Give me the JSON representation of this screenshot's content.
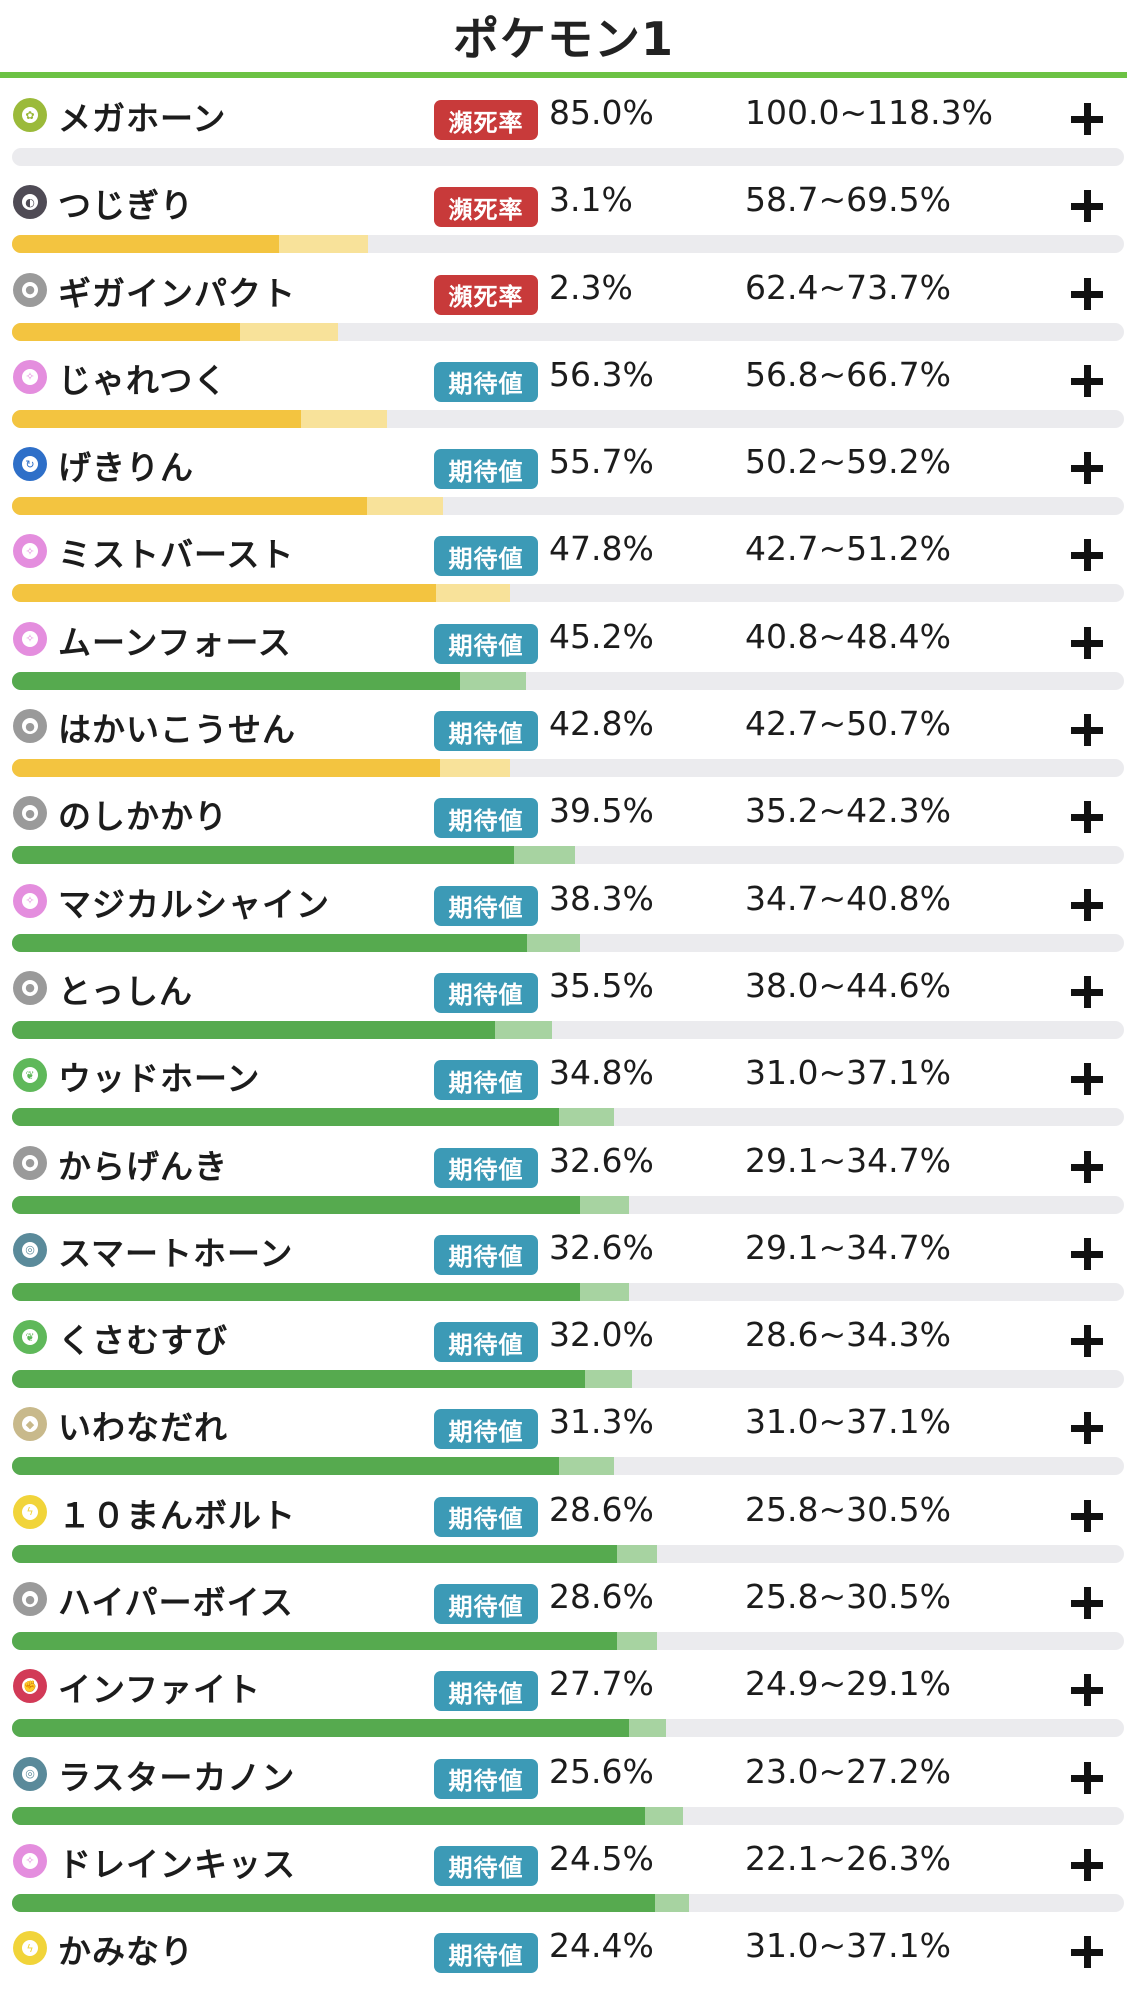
{
  "title": "ポケモン1",
  "colors": {
    "accent": "#6cc244",
    "badge_hinshi": "#c83a3a",
    "badge_kitai": "#3c9ab6",
    "bar_yellow": "#f3c440",
    "bar_yellow_light": "#f8e29a",
    "bar_green": "#56aa4f",
    "bar_green_light": "#a7d3a1",
    "bar_track": "#ebebee"
  },
  "moves": [
    {
      "name": "メガホーン",
      "type": "bug",
      "type_color": "#9bba3a",
      "badge": "瀕死率",
      "badge_color": "#c83a3a",
      "pct": "85.0%",
      "range": "100.0~118.3%",
      "bar_main": 0.0,
      "bar_light": 0.0,
      "bar_color": "yellow"
    },
    {
      "name": "つじぎり",
      "type": "dark",
      "type_color": "#4f4b55",
      "badge": "瀕死率",
      "badge_color": "#c83a3a",
      "pct": "3.1%",
      "range": "58.7~69.5%",
      "bar_main": 0.24,
      "bar_light": 0.32,
      "bar_color": "yellow"
    },
    {
      "name": "ギガインパクト",
      "type": "normal",
      "type_color": "#9a9a9a",
      "badge": "瀕死率",
      "badge_color": "#c83a3a",
      "pct": "2.3%",
      "range": "62.4~73.7%",
      "bar_main": 0.205,
      "bar_light": 0.293,
      "bar_color": "yellow"
    },
    {
      "name": "じゃれつく",
      "type": "fairy",
      "type_color": "#e48ede",
      "badge": "期待値",
      "badge_color": "#3c9ab6",
      "pct": "56.3%",
      "range": "56.8~66.7%",
      "bar_main": 0.26,
      "bar_light": 0.337,
      "bar_color": "yellow"
    },
    {
      "name": "げきりん",
      "type": "dragon",
      "type_color": "#2e6fc8",
      "badge": "期待値",
      "badge_color": "#3c9ab6",
      "pct": "55.7%",
      "range": "50.2~59.2%",
      "bar_main": 0.319,
      "bar_light": 0.388,
      "bar_color": "yellow"
    },
    {
      "name": "ミストバースト",
      "type": "fairy",
      "type_color": "#e48ede",
      "badge": "期待値",
      "badge_color": "#3c9ab6",
      "pct": "47.8%",
      "range": "42.7~51.2%",
      "bar_main": 0.381,
      "bar_light": 0.448,
      "bar_color": "yellow"
    },
    {
      "name": "ムーンフォース",
      "type": "fairy",
      "type_color": "#e48ede",
      "badge": "期待値",
      "badge_color": "#3c9ab6",
      "pct": "45.2%",
      "range": "40.8~48.4%",
      "bar_main": 0.403,
      "bar_light": 0.462,
      "bar_color": "green"
    },
    {
      "name": "はかいこうせん",
      "type": "normal",
      "type_color": "#9a9a9a",
      "badge": "期待値",
      "badge_color": "#3c9ab6",
      "pct": "42.8%",
      "range": "42.7~50.7%",
      "bar_main": 0.385,
      "bar_light": 0.448,
      "bar_color": "yellow"
    },
    {
      "name": "のしかかり",
      "type": "normal",
      "type_color": "#9a9a9a",
      "badge": "期待値",
      "badge_color": "#3c9ab6",
      "pct": "39.5%",
      "range": "35.2~42.3%",
      "bar_main": 0.451,
      "bar_light": 0.506,
      "bar_color": "green"
    },
    {
      "name": "マジカルシャイン",
      "type": "fairy",
      "type_color": "#e48ede",
      "badge": "期待値",
      "badge_color": "#3c9ab6",
      "pct": "38.3%",
      "range": "34.7~40.8%",
      "bar_main": 0.463,
      "bar_light": 0.511,
      "bar_color": "green"
    },
    {
      "name": "とっしん",
      "type": "normal",
      "type_color": "#9a9a9a",
      "badge": "期待値",
      "badge_color": "#3c9ab6",
      "pct": "35.5%",
      "range": "38.0~44.6%",
      "bar_main": 0.434,
      "bar_light": 0.486,
      "bar_color": "green"
    },
    {
      "name": "ウッドホーン",
      "type": "grass",
      "type_color": "#5fb85a",
      "badge": "期待値",
      "badge_color": "#3c9ab6",
      "pct": "34.8%",
      "range": "31.0~37.1%",
      "bar_main": 0.492,
      "bar_light": 0.541,
      "bar_color": "green"
    },
    {
      "name": "からげんき",
      "type": "normal",
      "type_color": "#9a9a9a",
      "badge": "期待値",
      "badge_color": "#3c9ab6",
      "pct": "32.6%",
      "range": "29.1~34.7%",
      "bar_main": 0.511,
      "bar_light": 0.555,
      "bar_color": "green"
    },
    {
      "name": "スマートホーン",
      "type": "steel",
      "type_color": "#5a8a9a",
      "badge": "期待値",
      "badge_color": "#3c9ab6",
      "pct": "32.6%",
      "range": "29.1~34.7%",
      "bar_main": 0.511,
      "bar_light": 0.555,
      "bar_color": "green"
    },
    {
      "name": "くさむすび",
      "type": "grass",
      "type_color": "#5fb85a",
      "badge": "期待値",
      "badge_color": "#3c9ab6",
      "pct": "32.0%",
      "range": "28.6~34.3%",
      "bar_main": 0.515,
      "bar_light": 0.558,
      "bar_color": "green"
    },
    {
      "name": "いわなだれ",
      "type": "rock",
      "type_color": "#c8b98b",
      "badge": "期待値",
      "badge_color": "#3c9ab6",
      "pct": "31.3%",
      "range": "31.0~37.1%",
      "bar_main": 0.492,
      "bar_light": 0.541,
      "bar_color": "green"
    },
    {
      "name": "１０まんボルト",
      "type": "electric",
      "type_color": "#f1d43a",
      "badge": "期待値",
      "badge_color": "#3c9ab6",
      "pct": "28.6%",
      "range": "25.8~30.5%",
      "bar_main": 0.544,
      "bar_light": 0.58,
      "bar_color": "green"
    },
    {
      "name": "ハイパーボイス",
      "type": "normal",
      "type_color": "#9a9a9a",
      "badge": "期待値",
      "badge_color": "#3c9ab6",
      "pct": "28.6%",
      "range": "25.8~30.5%",
      "bar_main": 0.544,
      "bar_light": 0.58,
      "bar_color": "green"
    },
    {
      "name": "インファイト",
      "type": "fighting",
      "type_color": "#d23a57",
      "badge": "期待値",
      "badge_color": "#3c9ab6",
      "pct": "27.7%",
      "range": "24.9~29.1%",
      "bar_main": 0.555,
      "bar_light": 0.588,
      "bar_color": "green"
    },
    {
      "name": "ラスターカノン",
      "type": "steel",
      "type_color": "#5a8a9a",
      "badge": "期待値",
      "badge_color": "#3c9ab6",
      "pct": "25.6%",
      "range": "23.0~27.2%",
      "bar_main": 0.569,
      "bar_light": 0.603,
      "bar_color": "green"
    },
    {
      "name": "ドレインキッス",
      "type": "fairy",
      "type_color": "#e48ede",
      "badge": "期待値",
      "badge_color": "#3c9ab6",
      "pct": "24.5%",
      "range": "22.1~26.3%",
      "bar_main": 0.578,
      "bar_light": 0.609,
      "bar_color": "green"
    },
    {
      "name": "かみなり",
      "type": "electric",
      "type_color": "#f1d43a",
      "badge": "期待値",
      "badge_color": "#3c9ab6",
      "pct": "24.4%",
      "range": "31.0~37.1%",
      "bar_main": 0.0,
      "bar_light": 0.0,
      "bar_color": "green"
    }
  ]
}
